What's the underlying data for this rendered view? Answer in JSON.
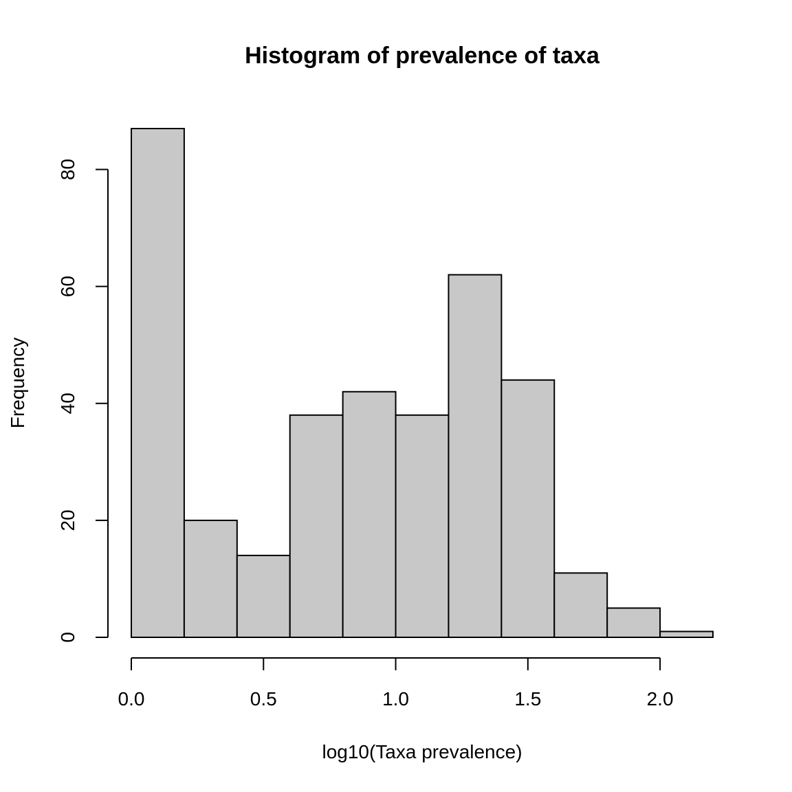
{
  "chart_data": {
    "type": "bar",
    "title": "Histogram of prevalence of taxa",
    "xlabel": "log10(Taxa prevalence)",
    "ylabel": "Frequency",
    "bins": [
      {
        "start": 0.0,
        "end": 0.2,
        "count": 87
      },
      {
        "start": 0.2,
        "end": 0.4,
        "count": 20
      },
      {
        "start": 0.4,
        "end": 0.6,
        "count": 14
      },
      {
        "start": 0.6,
        "end": 0.8,
        "count": 38
      },
      {
        "start": 0.8,
        "end": 1.0,
        "count": 42
      },
      {
        "start": 1.0,
        "end": 1.2,
        "count": 38
      },
      {
        "start": 1.2,
        "end": 1.4,
        "count": 62
      },
      {
        "start": 1.4,
        "end": 1.6,
        "count": 44
      },
      {
        "start": 1.6,
        "end": 1.8,
        "count": 11
      },
      {
        "start": 1.8,
        "end": 2.0,
        "count": 5
      },
      {
        "start": 2.0,
        "end": 2.2,
        "count": 1
      }
    ],
    "xlim": [
      0,
      2.2
    ],
    "ylim": [
      0,
      87
    ],
    "xticks": [
      {
        "value": 0.0,
        "label": "0.0"
      },
      {
        "value": 0.5,
        "label": "0.5"
      },
      {
        "value": 1.0,
        "label": "1.0"
      },
      {
        "value": 1.5,
        "label": "1.5"
      },
      {
        "value": 2.0,
        "label": "2.0"
      }
    ],
    "yticks": [
      {
        "value": 0,
        "label": "0"
      },
      {
        "value": 20,
        "label": "20"
      },
      {
        "value": 40,
        "label": "40"
      },
      {
        "value": 60,
        "label": "60"
      },
      {
        "value": 80,
        "label": "80"
      }
    ],
    "grid": false,
    "legend": "none",
    "colors": {
      "bar_fill": "#c8c8c8",
      "bar_stroke": "#000000"
    }
  }
}
